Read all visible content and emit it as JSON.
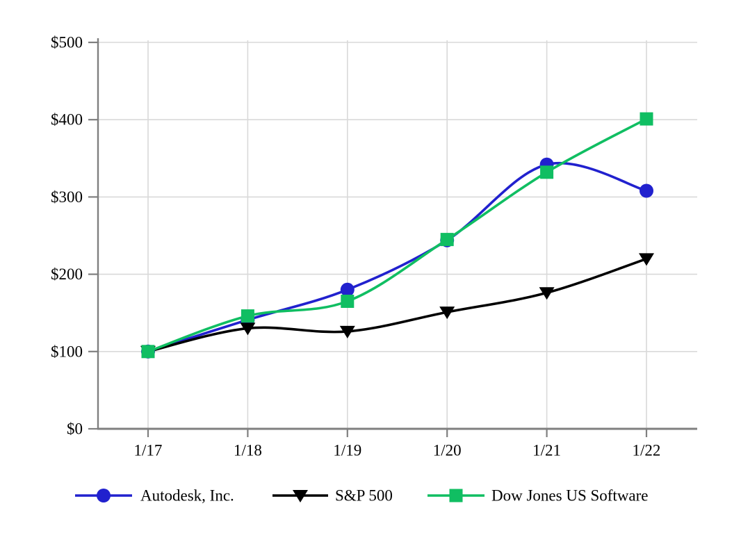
{
  "chart_data": {
    "type": "line",
    "title": "",
    "xlabel": "",
    "ylabel": "",
    "x_labels": [
      "1/17",
      "1/18",
      "1/19",
      "1/20",
      "1/21",
      "1/22"
    ],
    "series": [
      {
        "name": "Autodesk, Inc.",
        "marker": "circle",
        "color": "#2121ce",
        "values": [
          100,
          141,
          180,
          244,
          342,
          308
        ]
      },
      {
        "name": "S&P 500",
        "marker": "triangle-down",
        "color": "#000000",
        "values": [
          100,
          130,
          126,
          151,
          176,
          220
        ]
      },
      {
        "name": "Dow Jones US Software",
        "marker": "square",
        "color": "#10be62",
        "values": [
          100,
          146,
          165,
          245,
          332,
          401
        ]
      }
    ],
    "y_ticks": [
      {
        "value": 0,
        "label": "$0"
      },
      {
        "value": 100,
        "label": "$100"
      },
      {
        "value": 200,
        "label": "$200"
      },
      {
        "value": 300,
        "label": "$300"
      },
      {
        "value": 400,
        "label": "$400"
      },
      {
        "value": 500,
        "label": "$500"
      }
    ],
    "ylim": [
      0,
      500
    ],
    "grid": true,
    "line_smoothing": true,
    "legend_position": "bottom"
  },
  "style_colors": {
    "background": "#ffffff",
    "axis_spine": "#7f7f7f",
    "tick_mark": "#7f7f7f",
    "gridline": "#d9d9d9",
    "label_text": "#000000"
  }
}
